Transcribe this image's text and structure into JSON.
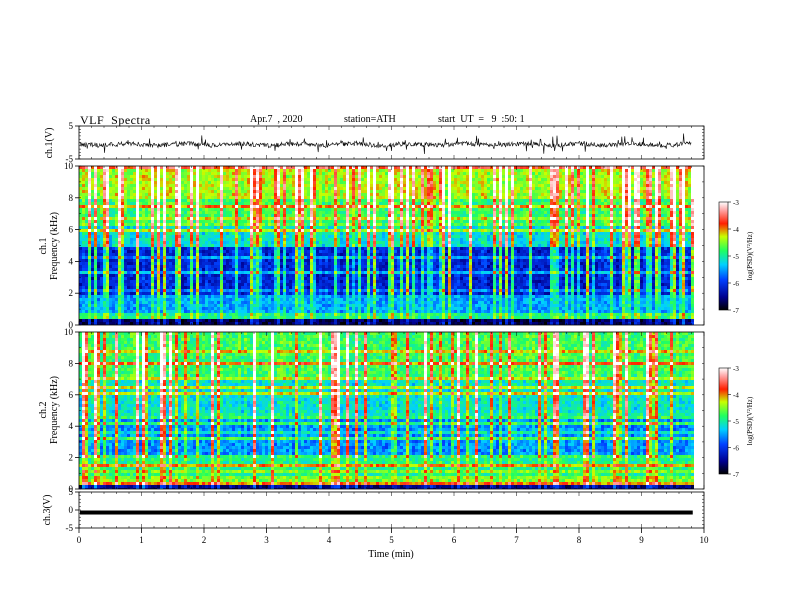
{
  "header": {
    "title": "VLF  Spectra",
    "date": "Apr.7  , 2020",
    "station": "station=ATH",
    "start": "start  UT  =   9  :50: 1"
  },
  "chart_data": [
    {
      "type": "line",
      "panel": "ch1-waveform",
      "ylabel": "ch.1(V)",
      "ylim": [
        -5,
        5
      ],
      "yticks": [
        "5",
        "-5"
      ],
      "xlim": [
        0,
        10
      ],
      "baseline": -0.6,
      "trace_extent_min": 9.8
    },
    {
      "type": "heatmap",
      "panel": "ch1-spectrogram",
      "ylabel": [
        "ch.1",
        "Frequency (kHz)"
      ],
      "ylim": [
        0,
        10
      ],
      "yticks": [
        "0",
        "2",
        "4",
        "6",
        "8",
        "10"
      ],
      "xlim": [
        0,
        10
      ],
      "colorbar": {
        "label": "log(PSD)(V²/Hz)",
        "range": [
          -7,
          -3
        ],
        "ticks": [
          "-3",
          "-4",
          "-5",
          "-6",
          "-7"
        ]
      }
    },
    {
      "type": "heatmap",
      "panel": "ch2-spectrogram",
      "ylabel": [
        "ch.2",
        "Frequency (kHz)"
      ],
      "ylim": [
        0,
        10
      ],
      "yticks": [
        "0",
        "2",
        "4",
        "6",
        "8",
        "10"
      ],
      "xlim": [
        0,
        10
      ],
      "colorbar": {
        "label": "log(PSD)(V²/Hz)",
        "range": [
          -7,
          -3
        ],
        "ticks": [
          "-3",
          "-4",
          "-5",
          "-6",
          "-7"
        ]
      }
    },
    {
      "type": "line",
      "panel": "ch3-waveform",
      "ylabel": "ch.3(V)",
      "ylim": [
        -5,
        5
      ],
      "yticks": [
        "5",
        "0",
        "-5"
      ],
      "xlim": [
        0,
        10
      ],
      "baseline": -0.7
    }
  ],
  "xaxis": {
    "label": "Time  (min)",
    "ticks": [
      "0",
      "1",
      "2",
      "3",
      "4",
      "5",
      "6",
      "7",
      "8",
      "9",
      "10"
    ]
  }
}
